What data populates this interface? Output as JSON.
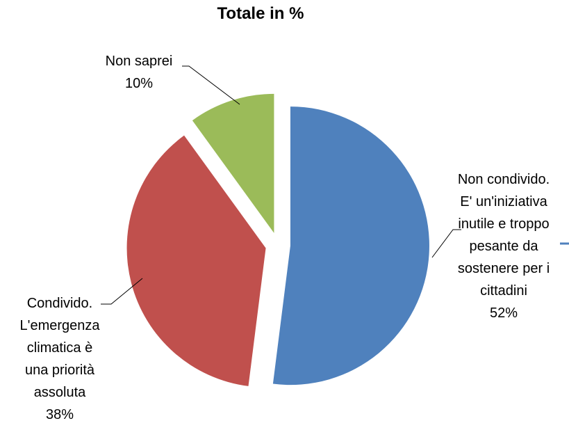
{
  "chart_data": {
    "type": "pie",
    "title": "Totale in %",
    "categories": [
      "Non condivido. E' un'iniziativa inutile e troppo pesante da sostenere per i cittadini",
      "Condivido. L'emergenza climatica è una priorità assoluta",
      "Non saprei"
    ],
    "values": [
      52,
      38,
      10
    ],
    "value_labels": [
      "52%",
      "38%",
      "10%"
    ],
    "colors": [
      "#4f81bd",
      "#c0504d",
      "#9bbb59"
    ],
    "exploded": true
  }
}
